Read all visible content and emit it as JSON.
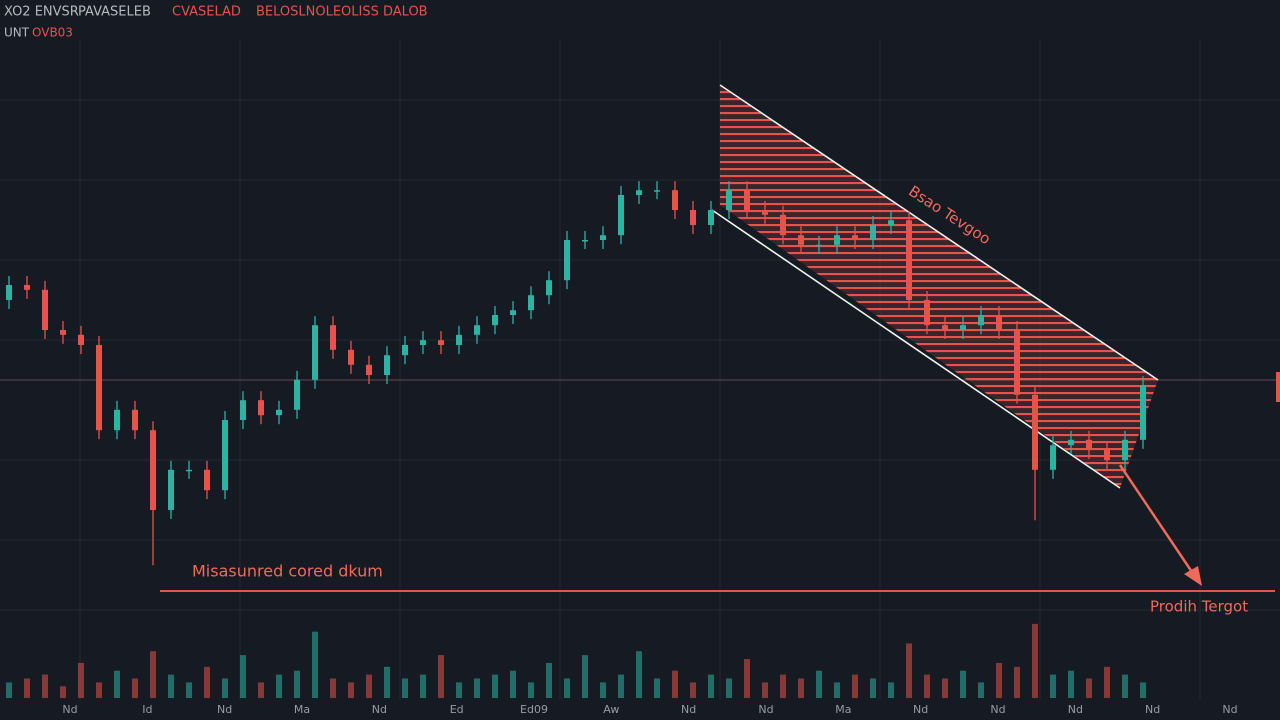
{
  "chart_data": {
    "type": "candlestick",
    "header": [
      "XO2 ENVSR",
      "PAVASELEB",
      "CVASELAD",
      "BELOSLNOLEOLISS DALOB"
    ],
    "subheader": [
      "UNT",
      "OVB03"
    ],
    "annotations": {
      "measured": "Misasunred cored dkum",
      "flag": "Bsao Tevgoo",
      "target": "Prodih Tergot"
    },
    "up_color": "#2bb3a3",
    "down_color": "#e5534b",
    "ylim": [
      0,
      100
    ],
    "volume_ylim": [
      0,
      100
    ],
    "open": [
      50,
      52.5,
      51.7,
      45,
      44.2,
      42.5,
      28.3,
      31.7,
      28.3,
      15,
      21.7,
      21.7,
      18.3,
      30,
      33.3,
      30.8,
      31.7,
      36.7,
      45.8,
      41.7,
      39.2,
      37.5,
      40.8,
      42.5,
      43.3,
      42.5,
      44.2,
      45.8,
      47.5,
      48.3,
      50.8,
      53.3,
      60,
      60,
      60.8,
      67.5,
      68.3,
      68.3,
      65,
      62.5,
      65,
      68.3,
      65,
      64.2,
      60.8,
      59.2,
      59.2,
      60.8,
      60,
      62.5,
      63.3,
      50,
      45.8,
      45,
      45.8,
      47.5,
      45,
      34.2,
      21.7,
      25.8,
      26.7,
      25,
      23.3,
      26.7
    ],
    "high": [
      54,
      54,
      53.2,
      46.5,
      45.7,
      44,
      33.2,
      33.2,
      29.8,
      23.2,
      23.2,
      23.2,
      31.5,
      34.8,
      34.8,
      33.2,
      38.2,
      47.3,
      47.3,
      43.2,
      40.7,
      42.3,
      44,
      44.8,
      44.8,
      45.7,
      47.3,
      49,
      49.8,
      52.3,
      54.8,
      61.5,
      61.5,
      62.3,
      69,
      69.8,
      69.8,
      69.8,
      66.5,
      66.5,
      69.8,
      69.8,
      66.5,
      65.7,
      62.3,
      60.7,
      62.3,
      62.3,
      64,
      64.8,
      64.8,
      51.5,
      47.3,
      47.3,
      49,
      49,
      46.5,
      35.7,
      27.3,
      28.2,
      28.2,
      26.5,
      28.2,
      37.3
    ],
    "low": [
      48.5,
      50.2,
      43.5,
      42.7,
      41,
      26.8,
      26.8,
      26.8,
      5.8,
      13.5,
      20.2,
      16.8,
      16.8,
      28.5,
      29.3,
      29.3,
      30.2,
      35.2,
      40.2,
      37.7,
      36,
      36,
      39.3,
      41,
      41,
      41,
      42.7,
      44.3,
      46,
      46.8,
      49.3,
      51.8,
      58.5,
      58.5,
      59.3,
      66,
      66.8,
      63.5,
      61,
      61,
      63.5,
      63.5,
      62.7,
      59.3,
      57.7,
      57.7,
      57.7,
      58.5,
      58.5,
      61,
      48.5,
      44.3,
      43.5,
      43.5,
      44.3,
      43.5,
      32.7,
      13.3,
      20.2,
      24.3,
      23.5,
      21.8,
      21.8,
      25.2
    ],
    "close": [
      52.5,
      51.7,
      45,
      44.2,
      42.5,
      28.3,
      31.7,
      28.3,
      15,
      21.7,
      21.7,
      18.3,
      30,
      33.3,
      30.8,
      31.7,
      36.7,
      45.8,
      41.7,
      39.2,
      37.5,
      40.8,
      42.5,
      43.3,
      42.5,
      44.2,
      45.8,
      47.5,
      48.3,
      50.8,
      53.3,
      60,
      60,
      60.8,
      67.5,
      68.3,
      68.3,
      65,
      62.5,
      65,
      68.3,
      65,
      64.2,
      60.8,
      59.2,
      59.2,
      60.8,
      60,
      62.5,
      63.3,
      50,
      45.8,
      45,
      45.8,
      47.5,
      45,
      34.2,
      21.7,
      25.8,
      26.7,
      25,
      23.3,
      26.7,
      35.8
    ],
    "volume": [
      20,
      25,
      30,
      15,
      45,
      20,
      35,
      25,
      60,
      30,
      20,
      40,
      25,
      55,
      20,
      30,
      35,
      85,
      25,
      20,
      30,
      40,
      25,
      30,
      55,
      20,
      25,
      30,
      35,
      20,
      45,
      25,
      55,
      20,
      30,
      60,
      25,
      35,
      20,
      30,
      25,
      50,
      20,
      30,
      25,
      35,
      20,
      30,
      25,
      20,
      70,
      30,
      25,
      35,
      20,
      45,
      40,
      95,
      30,
      35,
      25,
      40,
      30,
      20
    ],
    "x_axis_labels": [
      "Nd",
      "Id",
      "Nd",
      "Ma",
      "Nd",
      "Ed",
      "Ed09",
      "Aw",
      "Nd",
      "Nd",
      "Ma",
      "Nd",
      "Nd",
      "Nd",
      "Nd",
      "Nd"
    ]
  }
}
